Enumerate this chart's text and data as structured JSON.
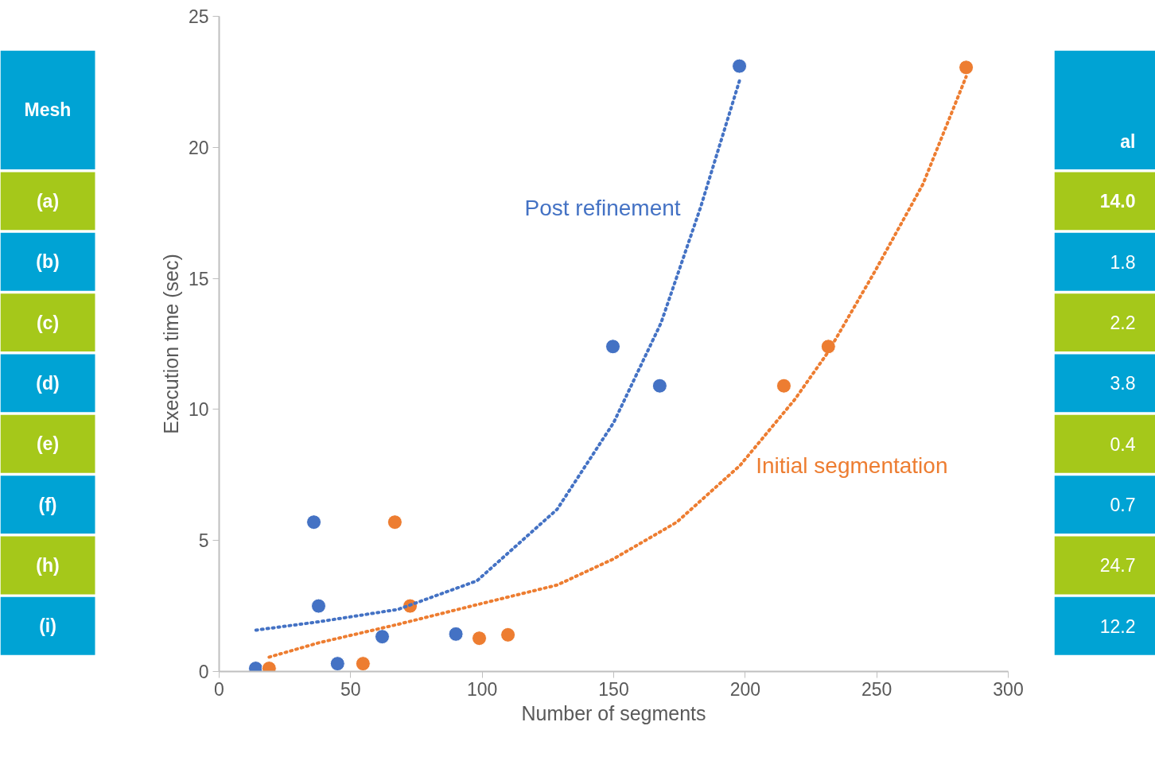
{
  "chart_data": [
    {
      "type": "scatter",
      "xlabel": "Number of segments",
      "ylabel": "Execution time (sec)",
      "xlim": [
        0,
        300
      ],
      "ylim": [
        0,
        25
      ],
      "xticks": [
        0,
        50,
        100,
        150,
        200,
        250,
        300
      ],
      "yticks": [
        0,
        5,
        10,
        15,
        20,
        25
      ],
      "grid": false,
      "series": [
        {
          "type": "scatter",
          "marker": "circle",
          "color": "#4472c4",
          "x": [
            13.9,
            36,
            37.8,
            45,
            62,
            90,
            149.7,
            167.5,
            197.8
          ],
          "values": [
            0.12,
            5.7,
            2.5,
            0.3,
            1.33,
            1.43,
            12.4,
            10.9,
            23.1
          ]
        },
        {
          "type": "scatter",
          "marker": "circle",
          "color": "#ed7d31",
          "x": [
            19,
            66.8,
            54.7,
            72.6,
            98.9,
            109.8,
            214.7,
            231.6,
            284
          ],
          "values": [
            0.12,
            5.7,
            0.3,
            2.5,
            1.27,
            1.4,
            10.9,
            12.4,
            23.05
          ]
        },
        {
          "type": "line",
          "marker": "none",
          "name": "Post refinement",
          "color": "#4472c4",
          "line_style": "dotted",
          "x": [
            14,
            38,
            68,
            98,
            128.5,
            150,
            168,
            183,
            198
          ],
          "values": [
            1.58,
            1.9,
            2.37,
            3.46,
            6.19,
            9.5,
            13.3,
            17.7,
            22.6
          ]
        },
        {
          "type": "line",
          "marker": "none",
          "name": "Initial segmentation",
          "color": "#ed7d31",
          "line_style": "dotted",
          "x": [
            19,
            38,
            68,
            98,
            128.5,
            150,
            174,
            198,
            219,
            231.6,
            249.5,
            267.6,
            284
          ],
          "values": [
            0.55,
            1.1,
            1.8,
            2.55,
            3.3,
            4.3,
            5.7,
            7.86,
            10.4,
            12.2,
            15.3,
            18.6,
            22.7
          ]
        }
      ]
    },
    {
      "type": "other",
      "annotations": [
        "Mesh",
        "(a)",
        "(b)",
        "(c)",
        "(d)",
        "(e)",
        "(f)",
        "(h)",
        "(i)"
      ],
      "colors": [
        "#00a3d4",
        "#a5c81a",
        "#00a3d4",
        "#a5c81a",
        "#00a3d4",
        "#a5c81a",
        "#00a3d4",
        "#a5c81a",
        "#00a3d4"
      ]
    },
    {
      "type": "other",
      "annotations": [
        "al",
        "14.0",
        "1.8",
        "2.2",
        "3.8",
        "0.4",
        "0.7",
        "24.7",
        "12.2"
      ],
      "colors": [
        "#00a3d4",
        "#a5c81a",
        "#00a3d4",
        "#a5c81a",
        "#00a3d4",
        "#a5c81a",
        "#00a3d4",
        "#a5c81a",
        "#00a3d4"
      ]
    }
  ]
}
